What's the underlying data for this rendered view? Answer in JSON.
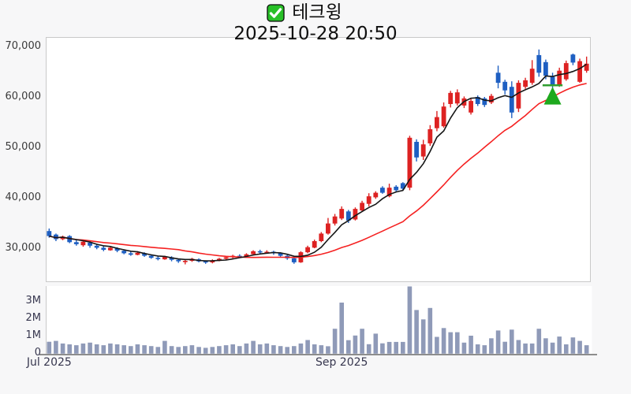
{
  "header": {
    "checkbox_icon": "green-checked-checkbox-icon",
    "title": "테크윙",
    "datetime": "2025-10-28 20:50"
  },
  "colors": {
    "up_candle": "#dd2222",
    "down_candle": "#1e5fc2",
    "ma_short_line": "#161616",
    "ma_long_line": "#f52121",
    "volume_bar": "#8f9ab8",
    "marker_green": "#1ea91e",
    "checkbox_green": "#28c028",
    "panel_border": "#c9c9c9",
    "panel_bg": "#ffffff",
    "page_bg": "#f7f7f8"
  },
  "chart_data": {
    "type": "candlestick+volume",
    "symbol": "테크윙",
    "timestamp": "2025-10-28 20:50",
    "legend_position": "none",
    "grid": false,
    "price_axis": {
      "ticks": [
        {
          "label": "70,000",
          "value": 70000
        },
        {
          "label": "60,000",
          "value": 60000
        },
        {
          "label": "50,000",
          "value": 50000
        },
        {
          "label": "40,000",
          "value": 40000
        },
        {
          "label": "30,000",
          "value": 30000
        }
      ],
      "range_top": 71800,
      "range_bottom": 23400
    },
    "volume_axis": {
      "ticks": [
        {
          "label": "3M",
          "value": 3000000
        },
        {
          "label": "2M",
          "value": 2000000
        },
        {
          "label": "1M",
          "value": 1000000
        },
        {
          "label": "0",
          "value": 0
        }
      ],
      "range_top": 3900000
    },
    "x_ticks": [
      {
        "label": "Jul 2025",
        "index": 0
      },
      {
        "label": "Sep 2025",
        "index": 43
      }
    ],
    "ma_short_period": 5,
    "ma_long_period": 20,
    "marker": {
      "type": "triangle-up-buy-signal",
      "index": 74,
      "tip_price": 62000,
      "base_price": 58500,
      "line_price": 62300,
      "line_from_index": 73,
      "line_to_index": 75
    },
    "candles_format": [
      "open",
      "high",
      "low",
      "close",
      "volume"
    ],
    "candles": [
      [
        33400,
        33900,
        32100,
        32400,
        650000
      ],
      [
        32700,
        32900,
        31400,
        31800,
        700000
      ],
      [
        31800,
        32500,
        31600,
        32300,
        550000
      ],
      [
        32400,
        32600,
        31000,
        31200,
        500000
      ],
      [
        31200,
        31600,
        30500,
        30800,
        450000
      ],
      [
        30600,
        31500,
        30300,
        31300,
        550000
      ],
      [
        31100,
        31300,
        30100,
        30500,
        600000
      ],
      [
        30500,
        30800,
        29800,
        30100,
        500000
      ],
      [
        30100,
        30400,
        29400,
        29700,
        450000
      ],
      [
        29600,
        30400,
        29500,
        30100,
        550000
      ],
      [
        30000,
        30200,
        29200,
        29500,
        500000
      ],
      [
        29500,
        29700,
        28800,
        29000,
        450000
      ],
      [
        29000,
        29300,
        28500,
        28700,
        400000
      ],
      [
        28700,
        29400,
        28600,
        29100,
        500000
      ],
      [
        29000,
        29200,
        28300,
        28500,
        450000
      ],
      [
        28500,
        28700,
        27900,
        28100,
        400000
      ],
      [
        28100,
        28400,
        27600,
        27900,
        350000
      ],
      [
        27800,
        28500,
        27700,
        28300,
        700000
      ],
      [
        28200,
        28400,
        27400,
        27700,
        400000
      ],
      [
        27700,
        27900,
        27100,
        27400,
        350000
      ],
      [
        27400,
        27700,
        26800,
        27500,
        400000
      ],
      [
        27500,
        28100,
        27300,
        27900,
        450000
      ],
      [
        27800,
        28000,
        27200,
        27400,
        350000
      ],
      [
        27400,
        27600,
        26900,
        27200,
        300000
      ],
      [
        27200,
        27800,
        27000,
        27600,
        350000
      ],
      [
        27600,
        28100,
        27400,
        27900,
        400000
      ],
      [
        27900,
        28400,
        27700,
        28200,
        450000
      ],
      [
        28200,
        28700,
        28000,
        28500,
        500000
      ],
      [
        28500,
        28800,
        28100,
        28400,
        400000
      ],
      [
        28400,
        29000,
        28200,
        28800,
        550000
      ],
      [
        28800,
        29600,
        28600,
        29400,
        700000
      ],
      [
        29400,
        29700,
        28900,
        29200,
        500000
      ],
      [
        29100,
        29600,
        28900,
        29300,
        550000
      ],
      [
        29300,
        29500,
        28700,
        29000,
        450000
      ],
      [
        29000,
        29200,
        28300,
        28500,
        400000
      ],
      [
        28500,
        28700,
        27700,
        28000,
        350000
      ],
      [
        28000,
        28200,
        26900,
        27200,
        400000
      ],
      [
        27200,
        29400,
        27100,
        29200,
        550000
      ],
      [
        29200,
        30500,
        29000,
        30200,
        750000
      ],
      [
        30100,
        31700,
        30000,
        31400,
        500000
      ],
      [
        31400,
        33200,
        31200,
        32900,
        450000
      ],
      [
        32900,
        36000,
        32700,
        34900,
        390000
      ],
      [
        34900,
        36800,
        34500,
        36300,
        1400000
      ],
      [
        35900,
        38300,
        35600,
        37800,
        2910000
      ],
      [
        37300,
        37600,
        35000,
        35500,
        740000
      ],
      [
        35700,
        38100,
        35500,
        37800,
        1010000
      ],
      [
        37500,
        39400,
        37200,
        39000,
        1400000
      ],
      [
        38800,
        40900,
        38300,
        40300,
        510000
      ],
      [
        40100,
        41300,
        39800,
        41000,
        1120000
      ],
      [
        42000,
        42300,
        40800,
        41000,
        560000
      ],
      [
        40300,
        42800,
        40100,
        42000,
        640000
      ],
      [
        42200,
        42500,
        41200,
        41500,
        640000
      ],
      [
        42900,
        43100,
        41500,
        41800,
        640000
      ],
      [
        42000,
        52300,
        41500,
        51900,
        3840000
      ],
      [
        51100,
        51600,
        47200,
        48000,
        2480000
      ],
      [
        48200,
        51500,
        47500,
        50600,
        1940000
      ],
      [
        50800,
        54400,
        50300,
        53600,
        2600000
      ],
      [
        53800,
        57200,
        53200,
        56000,
        930000
      ],
      [
        54200,
        58900,
        53900,
        58100,
        1440000
      ],
      [
        58600,
        61200,
        57900,
        60800,
        1200000
      ],
      [
        58700,
        61500,
        58300,
        60900,
        1200000
      ],
      [
        58300,
        60100,
        57800,
        59700,
        600000
      ],
      [
        56900,
        59600,
        56500,
        59200,
        1000000
      ],
      [
        60000,
        60300,
        58200,
        58600,
        500000
      ],
      [
        59700,
        60000,
        58000,
        58400,
        450000
      ],
      [
        58900,
        60600,
        58600,
        60200,
        850000
      ],
      [
        64800,
        66200,
        61700,
        62800,
        1300000
      ],
      [
        63000,
        63400,
        60500,
        61300,
        650000
      ],
      [
        62000,
        63100,
        55800,
        56900,
        1350000
      ],
      [
        57700,
        63300,
        57000,
        62800,
        750000
      ],
      [
        62000,
        63800,
        61600,
        63300,
        550000
      ],
      [
        62800,
        67300,
        62400,
        65600,
        550000
      ],
      [
        68300,
        69400,
        64000,
        64800,
        1400000
      ],
      [
        66900,
        67400,
        63500,
        64200,
        850000
      ],
      [
        64000,
        64800,
        61300,
        62300,
        600000
      ],
      [
        62500,
        65800,
        62000,
        65200,
        950000
      ],
      [
        63500,
        67200,
        63200,
        66700,
        500000
      ],
      [
        68400,
        68600,
        66300,
        66800,
        900000
      ],
      [
        63000,
        67600,
        62800,
        67100,
        700000
      ],
      [
        65200,
        68000,
        64800,
        66600,
        450000
      ]
    ]
  }
}
